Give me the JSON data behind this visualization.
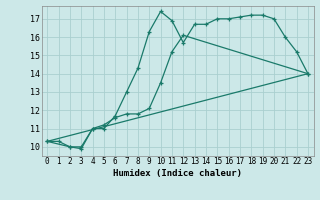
{
  "title": "",
  "xlabel": "Humidex (Indice chaleur)",
  "bg_color": "#cce8e8",
  "line_color": "#1a7a6a",
  "grid_color": "#aacfcf",
  "xlim": [
    -0.5,
    23.5
  ],
  "ylim": [
    9.5,
    17.7
  ],
  "xticks": [
    0,
    1,
    2,
    3,
    4,
    5,
    6,
    7,
    8,
    9,
    10,
    11,
    12,
    13,
    14,
    15,
    16,
    17,
    18,
    19,
    20,
    21,
    22,
    23
  ],
  "yticks": [
    10,
    11,
    12,
    13,
    14,
    15,
    16,
    17
  ],
  "line1_x": [
    0,
    1,
    2,
    3,
    4,
    5,
    6,
    7,
    8,
    9,
    10,
    11,
    12,
    13,
    14,
    15,
    16,
    17,
    18,
    19,
    20,
    21,
    22,
    23
  ],
  "line1_y": [
    10.3,
    10.3,
    10.0,
    9.9,
    11.0,
    11.0,
    11.7,
    13.0,
    14.3,
    16.3,
    17.4,
    16.9,
    15.7,
    16.7,
    16.7,
    17.0,
    17.0,
    17.1,
    17.2,
    17.2,
    17.0,
    16.0,
    15.2,
    14.0
  ],
  "line2_x": [
    0,
    2,
    3,
    4,
    5,
    6,
    7,
    8,
    9,
    10,
    11,
    12,
    23
  ],
  "line2_y": [
    10.3,
    10.0,
    10.0,
    11.0,
    11.2,
    11.6,
    11.8,
    11.8,
    12.1,
    13.5,
    15.2,
    16.1,
    14.0
  ],
  "line3_x": [
    0,
    23
  ],
  "line3_y": [
    10.3,
    14.0
  ]
}
